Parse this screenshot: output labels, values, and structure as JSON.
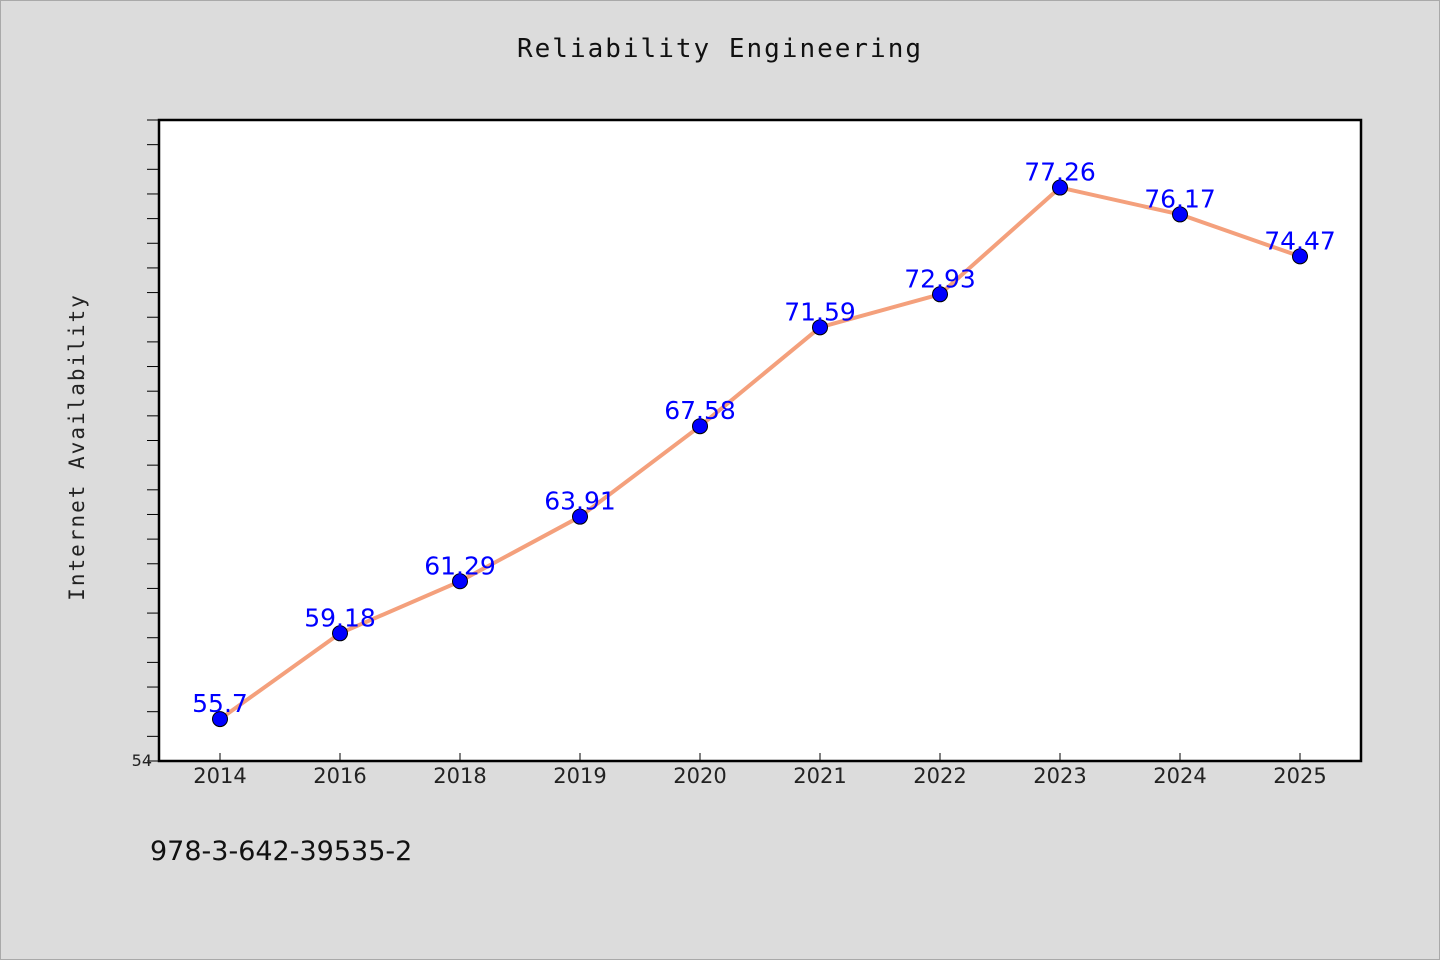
{
  "chart_data": {
    "type": "line",
    "title": "Reliability Engineering",
    "xlabel": "",
    "ylabel": "Internet Availability",
    "categories": [
      "2014",
      "2016",
      "2018",
      "2019",
      "2020",
      "2021",
      "2022",
      "2023",
      "2024",
      "2025"
    ],
    "series": [
      {
        "values": [
          55.7,
          59.18,
          61.29,
          63.91,
          67.58,
          71.59,
          72.93,
          77.26,
          76.17,
          74.47
        ],
        "data_labels": [
          "55.7",
          "59.18",
          "61.29",
          "63.91",
          "67.58",
          "71.59",
          "72.93",
          "77.26",
          "76.17",
          "74.47"
        ]
      }
    ],
    "ylim": [
      54,
      80
    ],
    "y_tick_label_shown": "54",
    "grid": false,
    "legend": "none",
    "colors": {
      "line": "#f4a07c",
      "marker": "#0000ff",
      "data_label": "#0000ff",
      "plot_background": "#ffffff",
      "figure_background": "#dcdcdc"
    }
  },
  "footer": {
    "isbn": "978-3-642-39535-2"
  }
}
